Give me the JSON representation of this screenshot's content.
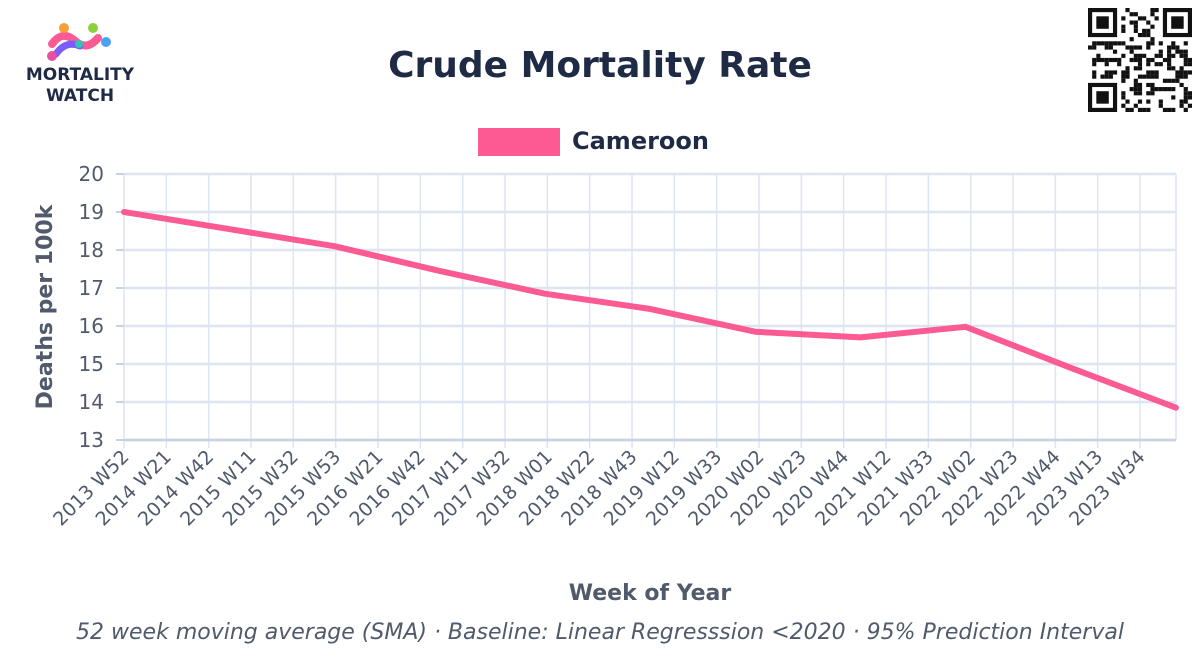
{
  "brand": {
    "line1": "MORTALITY",
    "line2": "WATCH"
  },
  "colors": {
    "series": "#fb5a93",
    "title": "#1f2a44",
    "grid": "#dde4f2",
    "axis": "#c9d1e3",
    "tick": "#505a6b"
  },
  "chart_data": {
    "type": "line",
    "title": "Crude Mortality Rate",
    "xlabel": "Week of Year",
    "ylabel": "Deaths per 100k",
    "ylim": [
      13,
      20
    ],
    "yticks": [
      13,
      14,
      15,
      16,
      17,
      18,
      19,
      20
    ],
    "x_tick_labels": [
      "2013 W52",
      "2014 W21",
      "2014 W42",
      "2015 W11",
      "2015 W32",
      "2015 W53",
      "2016 W21",
      "2016 W42",
      "2017 W11",
      "2017 W32",
      "2018 W01",
      "2018 W22",
      "2018 W43",
      "2019 W12",
      "2019 W33",
      "2020 W02",
      "2020 W23",
      "2020 W44",
      "2021 W12",
      "2021 W33",
      "2022 W02",
      "2022 W23",
      "2022 W44",
      "2023 W13",
      "2023 W34"
    ],
    "legend_position": "top-center",
    "grid": true,
    "series": [
      {
        "name": "Cameroon",
        "color": "#fb5a93",
        "x": [
          "2013 W52",
          "2014 W52",
          "2015 W52",
          "2016 W52",
          "2017 W52",
          "2018 W52",
          "2019 W52",
          "2020 W52",
          "2021 W52",
          "2022 W52",
          "2023 W52"
        ],
        "values": [
          19.0,
          18.55,
          18.1,
          17.45,
          16.85,
          16.45,
          15.85,
          15.7,
          15.98,
          14.9,
          13.85
        ]
      }
    ],
    "caption": "52 week moving average (SMA) · Baseline: Linear Regresssion <2020 · 95% Prediction Interval"
  }
}
